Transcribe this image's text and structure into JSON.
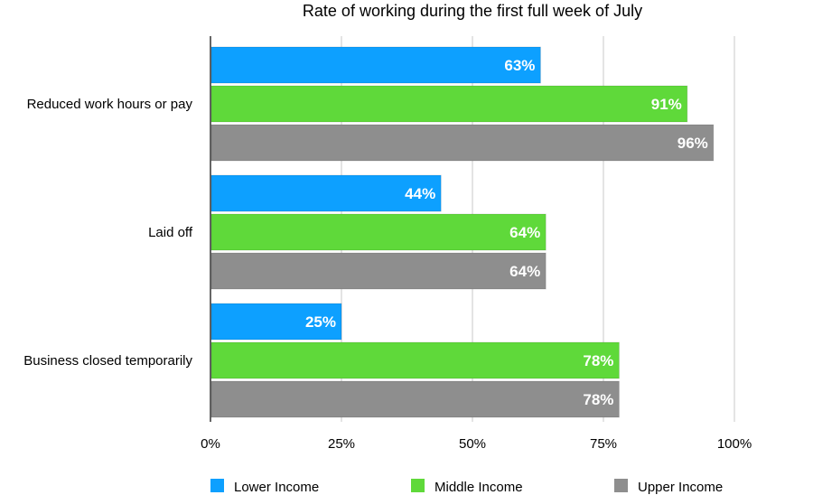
{
  "chart_data": {
    "type": "bar",
    "orientation": "horizontal",
    "title": "Rate of working during the first full week of July",
    "xlabel": "",
    "ylabel": "",
    "categories": [
      "Reduced work hours or pay",
      "Laid off",
      "Business closed temporarily"
    ],
    "series": [
      {
        "name": "Lower Income",
        "values": [
          63,
          44,
          25
        ],
        "color": "#0da0ff"
      },
      {
        "name": "Middle Income",
        "values": [
          91,
          64,
          78
        ],
        "color": "#5fd93a"
      },
      {
        "name": "Upper Income",
        "values": [
          96,
          64,
          78
        ],
        "color": "#8e8e8e"
      }
    ],
    "xlim": [
      0,
      100
    ],
    "x_ticks": [
      0,
      25,
      50,
      75,
      100
    ],
    "x_tick_labels": [
      "0%",
      "25%",
      "50%",
      "75%",
      "100%"
    ],
    "data_label_suffix": "%",
    "grid": "vertical",
    "legend_position": "bottom"
  }
}
